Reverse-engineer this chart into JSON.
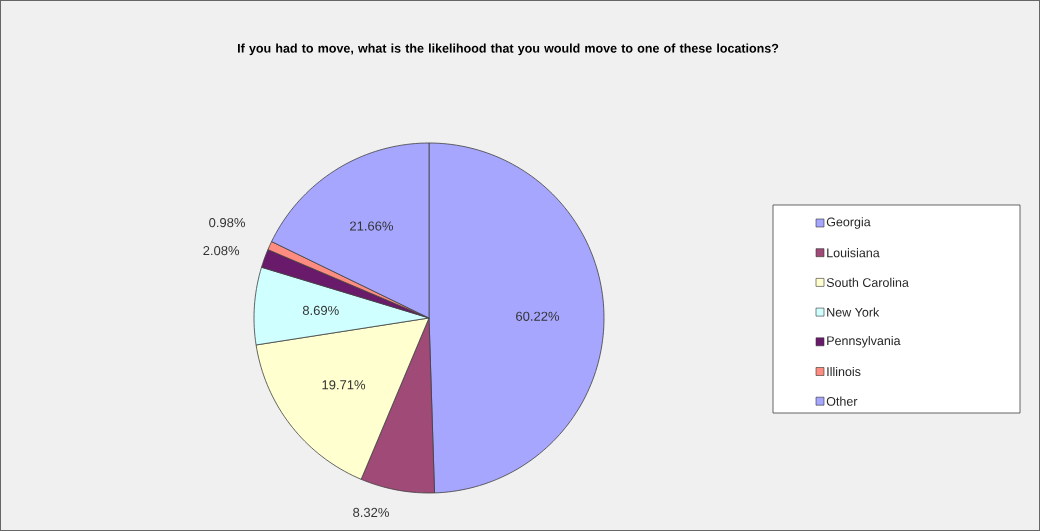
{
  "chart_data": {
    "type": "pie",
    "title": "If you had to move, what is the likelihood that you would move to one of these locations?",
    "categories": [
      "Georgia",
      "Louisiana",
      "South Carolina",
      "New York",
      "Pennsylvania",
      "Illinois",
      "Other"
    ],
    "values": [
      60.22,
      8.32,
      19.71,
      8.69,
      2.08,
      0.98,
      21.66
    ],
    "value_labels": [
      "60.22%",
      "8.32%",
      "19.71%",
      "8.69%",
      "2.08%",
      "0.98%",
      "21.66%"
    ],
    "colors": [
      "#a6a6ff",
      "#a04a78",
      "#ffffd0",
      "#d0ffff",
      "#6a1a6a",
      "#ff8c80",
      "#a6a6ff"
    ],
    "legend": "right"
  }
}
